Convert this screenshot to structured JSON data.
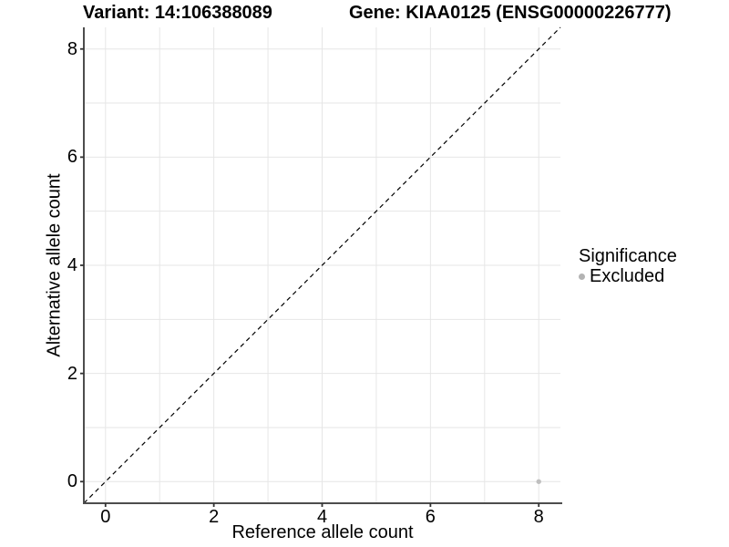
{
  "titles": {
    "variant": "Variant: 14:106388089",
    "gene": "Gene: KIAA0125 (ENSG00000226777)"
  },
  "legend": {
    "title": "Significance",
    "items": [
      {
        "label": "Excluded",
        "color": "#b3b3b3"
      }
    ]
  },
  "chart_data": {
    "type": "scatter",
    "title": "Variant: 14:106388089   Gene: KIAA0125 (ENSG00000226777)",
    "xlabel": "Reference allele count",
    "ylabel": "Alternative allele count",
    "xlim": [
      -0.4,
      8.4
    ],
    "ylim": [
      -0.4,
      8.4
    ],
    "xticks": [
      0,
      2,
      4,
      6,
      8
    ],
    "yticks": [
      0,
      2,
      4,
      6,
      8
    ],
    "xtick_labels": [
      "0",
      "2",
      "4",
      "6",
      "8"
    ],
    "ytick_labels": [
      "0",
      "2",
      "4",
      "6",
      "8"
    ],
    "grid_every": 1,
    "grid_on": true,
    "legend_position": "right",
    "colors": {
      "grid": "#e6e6e6",
      "axis_line": "#4d4d4d",
      "tick_mark": "#333333",
      "identity_line": "#000000",
      "point": "#bfbfbf",
      "background": "#ffffff",
      "text": "#000000"
    },
    "identity_line": {
      "slope": 1,
      "intercept": 0,
      "style": "dashed"
    },
    "series": [
      {
        "name": "Excluded",
        "color": "#bfbfbf",
        "points": [
          {
            "x": 8,
            "y": 0
          }
        ]
      }
    ]
  }
}
